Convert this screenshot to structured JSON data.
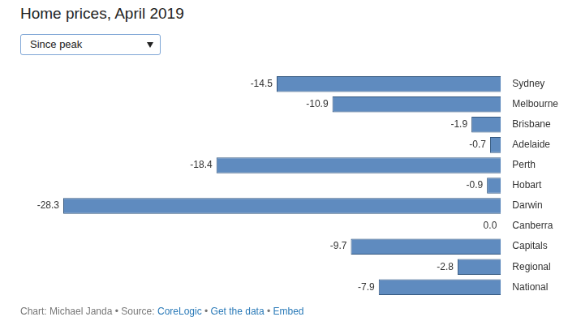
{
  "chart_data": {
    "type": "bar",
    "title": "Home prices, April 2019",
    "orientation": "horizontal",
    "categories": [
      "Sydney",
      "Melbourne",
      "Brisbane",
      "Adelaide",
      "Perth",
      "Hobart",
      "Darwin",
      "Canberra",
      "Capitals",
      "Regional",
      "National"
    ],
    "values": [
      -14.5,
      -10.9,
      -1.9,
      -0.7,
      -18.4,
      -0.9,
      -28.3,
      0.0,
      -9.7,
      -2.8,
      -7.9
    ],
    "value_labels": [
      "-14.5",
      "-10.9",
      "-1.9",
      "-0.7",
      "-18.4",
      "-0.9",
      "-28.3",
      "0.0",
      "-9.7",
      "-2.8",
      "-7.9"
    ],
    "color": "#5f8bbf",
    "xlim": [
      -28.3,
      0
    ],
    "grid": false,
    "data_labels": true,
    "tick_labels": "y"
  },
  "dropdown": "Since peak",
  "footer": {
    "credit": "Chart: Michael Janda",
    "separator": "•",
    "source_label": "Source:",
    "source": "CoreLogic",
    "links": [
      "Get the data",
      "Embed"
    ]
  }
}
